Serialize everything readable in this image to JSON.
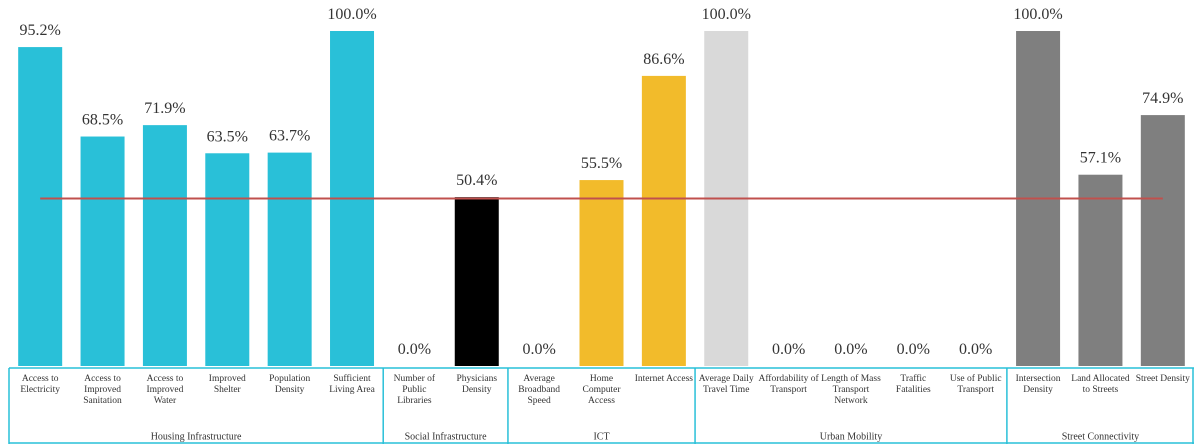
{
  "chart_data": {
    "type": "bar",
    "categories": [
      "Access to Electricity",
      "Access to Improved Sanitation",
      "Access to Improved Water",
      "Improved Shelter",
      "Population Density",
      "Sufficient Living Area",
      "Number of Public Libraries",
      "Physicians Density",
      "Average Broadband Speed",
      "Home Computer Access",
      "Internet Access",
      "Average Daily Travel Time",
      "Affordability of Transport",
      "Length of Mass Transport Network",
      "Traffic Fatalities",
      "Use of Public Transport",
      "Intersection Density",
      "Land Allocated to Streets",
      "Street Density"
    ],
    "values": [
      95.2,
      68.5,
      71.9,
      63.5,
      63.7,
      100.0,
      0.0,
      50.4,
      0.0,
      55.5,
      86.6,
      100.0,
      0.0,
      0.0,
      0.0,
      0.0,
      100.0,
      57.1,
      74.9
    ],
    "value_labels": [
      "95.2%",
      "68.5%",
      "71.9%",
      "63.5%",
      "63.7%",
      "100.0%",
      "0.0%",
      "50.4%",
      "0.0%",
      "55.5%",
      "86.6%",
      "100.0%",
      "0.0%",
      "0.0%",
      "0.0%",
      "0.0%",
      "100.0%",
      "57.1%",
      "74.9%"
    ],
    "colors": [
      "#29c0d8",
      "#29c0d8",
      "#29c0d8",
      "#29c0d8",
      "#29c0d8",
      "#29c0d8",
      "#29c0d8",
      "#000000",
      "#f2bb2b",
      "#f2bb2b",
      "#f2bb2b",
      "#d9d9d9",
      "#d9d9d9",
      "#d9d9d9",
      "#d9d9d9",
      "#d9d9d9",
      "#7f7f7f",
      "#7f7f7f",
      "#7f7f7f"
    ],
    "groups": [
      {
        "label": "Housing Infrastructure",
        "size": 6
      },
      {
        "label": "Social Infrastructure",
        "size": 2
      },
      {
        "label": "ICT",
        "size": 3
      },
      {
        "label": "Urban Mobility",
        "size": 5
      },
      {
        "label": "Street Connectivity",
        "size": 3
      }
    ],
    "reference_line": {
      "value": 50,
      "color": "#c0504d"
    },
    "frame_color": "#29c0d8",
    "ylim": [
      0,
      100
    ]
  }
}
